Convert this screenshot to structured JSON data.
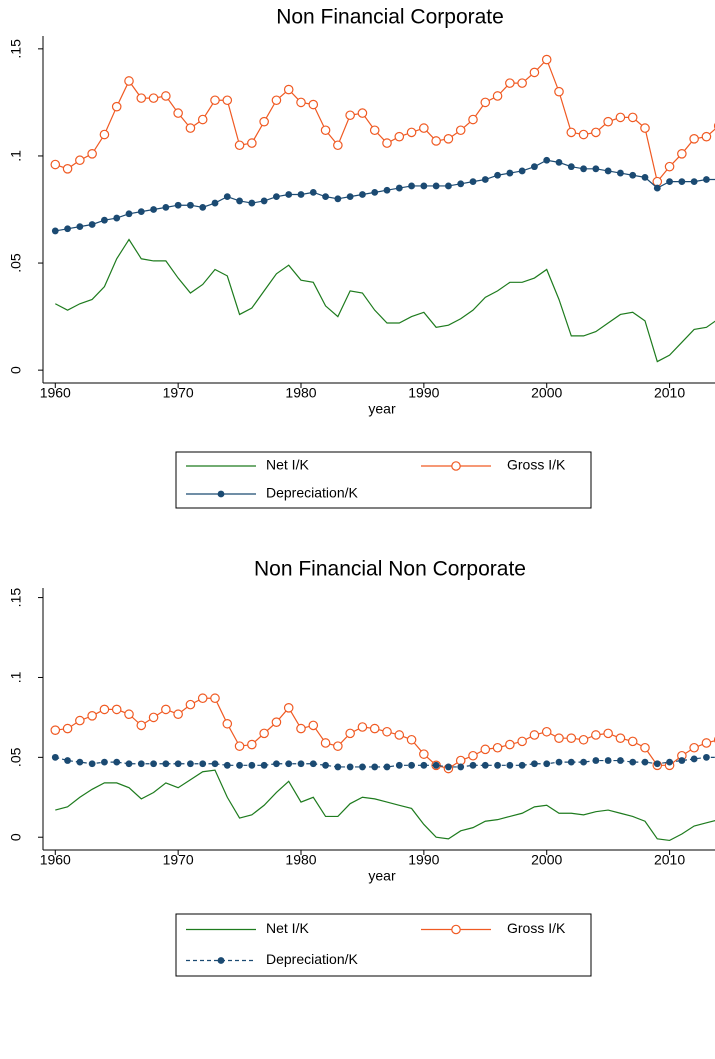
{
  "chart_data": [
    {
      "type": "line",
      "title": "Non Financial Corporate",
      "x_label": "year",
      "x": [
        1960,
        1961,
        1962,
        1963,
        1964,
        1965,
        1966,
        1967,
        1968,
        1969,
        1970,
        1971,
        1972,
        1973,
        1974,
        1975,
        1976,
        1977,
        1978,
        1979,
        1980,
        1981,
        1982,
        1983,
        1984,
        1985,
        1986,
        1987,
        1988,
        1989,
        1990,
        1991,
        1992,
        1993,
        1994,
        1995,
        1996,
        1997,
        1998,
        1999,
        2000,
        2001,
        2002,
        2003,
        2004,
        2005,
        2006,
        2007,
        2008,
        2009,
        2010,
        2011,
        2012,
        2013,
        2014
      ],
      "series": [
        {
          "name": "Net I/K",
          "color": "#1e7b1e",
          "marker": "none",
          "dash": "solid",
          "values": [
            0.031,
            0.028,
            0.031,
            0.033,
            0.039,
            0.052,
            0.061,
            0.052,
            0.051,
            0.051,
            0.043,
            0.036,
            0.04,
            0.047,
            0.044,
            0.026,
            0.029,
            0.037,
            0.045,
            0.049,
            0.042,
            0.041,
            0.03,
            0.025,
            0.037,
            0.036,
            0.028,
            0.022,
            0.022,
            0.025,
            0.027,
            0.02,
            0.021,
            0.024,
            0.028,
            0.034,
            0.037,
            0.041,
            0.041,
            0.043,
            0.047,
            0.033,
            0.016,
            0.016,
            0.018,
            0.022,
            0.026,
            0.027,
            0.023,
            0.004,
            0.007,
            0.013,
            0.019,
            0.02,
            0.024
          ]
        },
        {
          "name": "Gross I/K",
          "color": "#f05a23",
          "marker": "circle-open",
          "dash": "solid",
          "values": [
            0.096,
            0.094,
            0.098,
            0.101,
            0.11,
            0.123,
            0.135,
            0.127,
            0.127,
            0.128,
            0.12,
            0.113,
            0.117,
            0.126,
            0.126,
            0.105,
            0.106,
            0.116,
            0.126,
            0.131,
            0.125,
            0.124,
            0.112,
            0.105,
            0.119,
            0.12,
            0.112,
            0.106,
            0.109,
            0.111,
            0.113,
            0.107,
            0.108,
            0.112,
            0.117,
            0.125,
            0.128,
            0.134,
            0.134,
            0.139,
            0.145,
            0.13,
            0.111,
            0.11,
            0.111,
            0.116,
            0.118,
            0.118,
            0.113,
            0.088,
            0.095,
            0.101,
            0.108,
            0.109,
            0.114
          ]
        },
        {
          "name": "Depreciation/K",
          "color": "#1b4a72",
          "marker": "circle-filled",
          "dash": "solid",
          "values": [
            0.065,
            0.066,
            0.067,
            0.068,
            0.07,
            0.071,
            0.073,
            0.074,
            0.075,
            0.076,
            0.077,
            0.077,
            0.076,
            0.078,
            0.081,
            0.079,
            0.078,
            0.079,
            0.081,
            0.082,
            0.082,
            0.083,
            0.081,
            0.08,
            0.081,
            0.082,
            0.083,
            0.084,
            0.085,
            0.086,
            0.086,
            0.086,
            0.086,
            0.087,
            0.088,
            0.089,
            0.091,
            0.092,
            0.093,
            0.095,
            0.098,
            0.097,
            0.095,
            0.094,
            0.094,
            0.093,
            0.092,
            0.091,
            0.09,
            0.085,
            0.088,
            0.088,
            0.088,
            0.089,
            0.089
          ]
        }
      ],
      "xlim": [
        1959,
        2015
      ],
      "xticks": [
        1960,
        1970,
        1980,
        1990,
        2000,
        2010
      ],
      "ylim": [
        -0.006,
        0.156
      ],
      "yticks": [
        0,
        {
          "value": 0.05,
          "label": ".05"
        },
        {
          "value": 0.1,
          "label": ".1"
        },
        {
          "value": 0.15,
          "label": ".15"
        }
      ],
      "grid": false,
      "legend": "bottom"
    },
    {
      "type": "line",
      "title": "Non Financial Non Corporate",
      "x_label": "year",
      "x": [
        1960,
        1961,
        1962,
        1963,
        1964,
        1965,
        1966,
        1967,
        1968,
        1969,
        1970,
        1971,
        1972,
        1973,
        1974,
        1975,
        1976,
        1977,
        1978,
        1979,
        1980,
        1981,
        1982,
        1983,
        1984,
        1985,
        1986,
        1987,
        1988,
        1989,
        1990,
        1991,
        1992,
        1993,
        1994,
        1995,
        1996,
        1997,
        1998,
        1999,
        2000,
        2001,
        2002,
        2003,
        2004,
        2005,
        2006,
        2007,
        2008,
        2009,
        2010,
        2011,
        2012,
        2013,
        2014
      ],
      "series": [
        {
          "name": "Net I/K",
          "color": "#1e7b1e",
          "marker": "none",
          "dash": "solid",
          "values": [
            0.017,
            0.019,
            0.025,
            0.03,
            0.034,
            0.034,
            0.031,
            0.024,
            0.028,
            0.034,
            0.031,
            0.036,
            0.041,
            0.042,
            0.025,
            0.012,
            0.014,
            0.02,
            0.028,
            0.035,
            0.022,
            0.025,
            0.013,
            0.013,
            0.021,
            0.025,
            0.024,
            0.022,
            0.02,
            0.018,
            0.008,
            0,
            -0.001,
            0.004,
            0.006,
            0.01,
            0.011,
            0.013,
            0.015,
            0.019,
            0.02,
            0.015,
            0.015,
            0.014,
            0.016,
            0.017,
            0.015,
            0.013,
            0.01,
            -0.001,
            -0.002,
            0.002,
            0.007,
            0.009,
            0.011
          ]
        },
        {
          "name": "Gross I/K",
          "color": "#f05a23",
          "marker": "circle-open",
          "dash": "solid",
          "values": [
            0.067,
            0.068,
            0.073,
            0.076,
            0.08,
            0.08,
            0.077,
            0.07,
            0.075,
            0.08,
            0.077,
            0.083,
            0.087,
            0.087,
            0.071,
            0.057,
            0.058,
            0.065,
            0.072,
            0.081,
            0.068,
            0.07,
            0.059,
            0.057,
            0.065,
            0.069,
            0.068,
            0.066,
            0.064,
            0.061,
            0.052,
            0.045,
            0.043,
            0.048,
            0.051,
            0.055,
            0.056,
            0.058,
            0.06,
            0.064,
            0.066,
            0.062,
            0.062,
            0.061,
            0.064,
            0.065,
            0.062,
            0.06,
            0.056,
            0.045,
            0.045,
            0.051,
            0.056,
            0.059,
            0.061
          ]
        },
        {
          "name": "Depreciation/K",
          "color": "#1b4a72",
          "marker": "circle-filled",
          "dash": "dashed",
          "values": [
            0.05,
            0.048,
            0.047,
            0.046,
            0.047,
            0.047,
            0.046,
            0.046,
            0.046,
            0.046,
            0.046,
            0.046,
            0.046,
            0.046,
            0.045,
            0.045,
            0.045,
            0.045,
            0.046,
            0.046,
            0.046,
            0.046,
            0.045,
            0.044,
            0.044,
            0.044,
            0.044,
            0.044,
            0.045,
            0.045,
            0.045,
            0.045,
            0.044,
            0.044,
            0.045,
            0.045,
            0.045,
            0.045,
            0.045,
            0.046,
            0.046,
            0.047,
            0.047,
            0.047,
            0.048,
            0.048,
            0.048,
            0.047,
            0.047,
            0.046,
            0.047,
            0.048,
            0.049,
            0.05,
            0.05
          ]
        }
      ],
      "xlim": [
        1959,
        2015
      ],
      "xticks": [
        1960,
        1970,
        1980,
        1990,
        2000,
        2010
      ],
      "ylim": [
        -0.008,
        0.156
      ],
      "yticks": [
        0,
        {
          "value": 0.05,
          "label": ".05"
        },
        {
          "value": 0.1,
          "label": ".1"
        },
        {
          "value": 0.15,
          "label": ".15"
        }
      ],
      "grid": false,
      "legend": "bottom"
    }
  ]
}
